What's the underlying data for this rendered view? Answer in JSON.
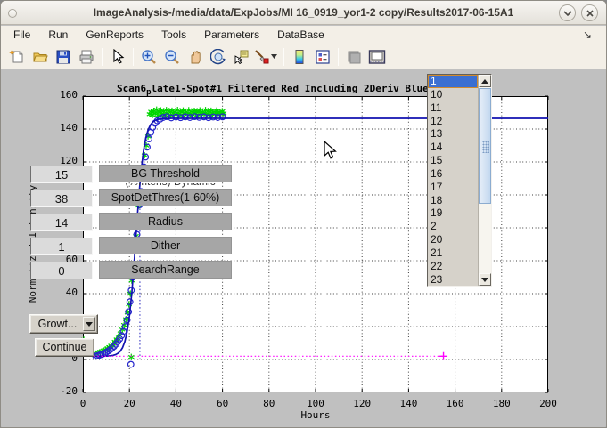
{
  "window": {
    "title": "ImageAnalysis-/media/data/ExpJobs/MI 16_0919_yor1-2 copy/Results2017-06-15A1"
  },
  "menu": {
    "items": [
      {
        "label": "File"
      },
      {
        "label": "Run"
      },
      {
        "label": "GenReports"
      },
      {
        "label": "Tools"
      },
      {
        "label": "Parameters"
      },
      {
        "label": "DataBase"
      }
    ],
    "overflow_arrow": "↘"
  },
  "toolbar": {
    "icons": [
      "new-figure",
      "open-file",
      "save-figure",
      "print-figure",
      "edit-plot-arrow",
      "zoom-in",
      "zoom-out",
      "pan-hand",
      "rotate-3d",
      "data-cursor",
      "brush-data",
      "insert-colorbar",
      "insert-legend",
      "hide-plot-tools",
      "dock-figure"
    ]
  },
  "controls": {
    "fields": [
      {
        "value": "15",
        "label": "BG Threshold"
      },
      {
        "value": "38",
        "label": "SpotDetThres(1-60%)"
      },
      {
        "value": "14",
        "label": "Radius"
      },
      {
        "value": "1",
        "label": "Dither"
      },
      {
        "value": "0",
        "label": "SearchRange"
      }
    ],
    "clipped_label": "(%Intens) Dynamic",
    "growth_dropdown_label": "Growt...",
    "continue_label": "Continue"
  },
  "listbox": {
    "items": [
      "1",
      "10",
      "11",
      "12",
      "13",
      "14",
      "15",
      "16",
      "17",
      "18",
      "19",
      "2",
      "20",
      "21",
      "22",
      "23"
    ],
    "selected": "1"
  },
  "chart_data": {
    "type": "scatter",
    "title_prefix": "Scan6",
    "title_sub": "p",
    "title_rest": "late1-Spot#1 Filtered Red Including 2Deriv Blue",
    "xlabel": "Hours",
    "ylabel": "Normalized Intensity",
    "xlim": [
      0,
      200
    ],
    "ylim": [
      -20,
      160
    ],
    "xticks": [
      0,
      20,
      40,
      60,
      80,
      100,
      120,
      140,
      160,
      180,
      200
    ],
    "yticks": [
      -20,
      0,
      20,
      40,
      60,
      80,
      100,
      120,
      140,
      160
    ],
    "grid": "dotted",
    "colors": {
      "green": "#00d400",
      "blue": "#2525cd",
      "fit": "#1212b0",
      "magenta": "#ff00ff",
      "vline": "#2222bb"
    },
    "series": [
      {
        "name": "raw-intensity-green",
        "marker": "asterisk",
        "color": "#00d400",
        "points": [
          [
            5.7,
            3.5
          ],
          [
            6.5,
            4
          ],
          [
            7.3,
            4.4
          ],
          [
            8.1,
            4.9
          ],
          [
            8.9,
            5.4
          ],
          [
            9.7,
            6
          ],
          [
            10.5,
            6.7
          ],
          [
            11.3,
            7.5
          ],
          [
            12.1,
            8.4
          ],
          [
            12.9,
            9.5
          ],
          [
            13.7,
            10.8
          ],
          [
            14.5,
            12.2
          ],
          [
            15.3,
            13.9
          ],
          [
            16.1,
            15.9
          ],
          [
            16.9,
            18.2
          ],
          [
            17.7,
            21
          ],
          [
            18.5,
            24.5
          ],
          [
            19.2,
            28.5
          ],
          [
            19.8,
            33.5
          ],
          [
            20.4,
            40
          ],
          [
            21,
            48
          ],
          [
            21.6,
            56.5
          ],
          [
            22.2,
            65.5
          ],
          [
            22.8,
            75
          ],
          [
            23.4,
            84.5
          ],
          [
            24,
            93.5
          ],
          [
            24.6,
            102
          ],
          [
            25.2,
            110
          ],
          [
            25.8,
            117
          ],
          [
            26.5,
            124
          ],
          [
            27.2,
            130
          ],
          [
            28,
            135.5
          ],
          [
            28.7,
            149
          ],
          [
            29.3,
            150.5
          ],
          [
            29.9,
            148.5
          ],
          [
            30.5,
            151
          ],
          [
            31.1,
            149.5
          ],
          [
            31.7,
            151.8
          ],
          [
            32.3,
            148.2
          ],
          [
            32.9,
            150.2
          ],
          [
            33.5,
            151.3
          ],
          [
            34.1,
            149
          ],
          [
            34.7,
            150.8
          ],
          [
            35.3,
            148.6
          ],
          [
            35.9,
            151.5
          ],
          [
            36.5,
            149.3
          ],
          [
            37.1,
            150.9
          ],
          [
            37.7,
            148.4
          ],
          [
            38.3,
            151.1
          ],
          [
            38.9,
            149.7
          ],
          [
            39.5,
            150.4
          ],
          [
            40.1,
            148.8
          ],
          [
            40.7,
            151.6
          ],
          [
            41.3,
            149.2
          ],
          [
            41.9,
            150.7
          ],
          [
            42.5,
            148.5
          ],
          [
            43.1,
            151.2
          ],
          [
            43.7,
            149.6
          ],
          [
            44.3,
            150.3
          ],
          [
            44.9,
            148.9
          ],
          [
            45.5,
            151.4
          ],
          [
            46.1,
            149.1
          ],
          [
            46.7,
            150.6
          ],
          [
            47.3,
            148.7
          ],
          [
            47.9,
            151
          ],
          [
            48.5,
            149.4
          ],
          [
            49.1,
            150.8
          ],
          [
            49.7,
            148.6
          ],
          [
            50.3,
            151.3
          ],
          [
            50.9,
            149.8
          ],
          [
            51.5,
            150.2
          ],
          [
            52.1,
            149
          ],
          [
            52.7,
            151.5
          ],
          [
            53.3,
            149.3
          ],
          [
            53.9,
            150.9
          ],
          [
            54.5,
            148.8
          ],
          [
            55.1,
            151.1
          ],
          [
            55.7,
            149.5
          ],
          [
            56.3,
            150.5
          ],
          [
            56.9,
            149
          ],
          [
            57.5,
            151.2
          ],
          [
            58.1,
            149.7
          ],
          [
            58.7,
            150.3
          ],
          [
            59.3,
            149.2
          ],
          [
            59.9,
            150.8
          ],
          [
            60.5,
            149.6
          ],
          [
            20.8,
            1.5
          ],
          [
            0.4,
            12
          ]
        ]
      },
      {
        "name": "spot-detect-blue",
        "marker": "circle",
        "color": "#2525cd",
        "points": [
          [
            5.5,
            2
          ],
          [
            6.3,
            2.3
          ],
          [
            7,
            2.6
          ],
          [
            7.8,
            3
          ],
          [
            8.6,
            3.4
          ],
          [
            9.4,
            3.9
          ],
          [
            10.2,
            4.5
          ],
          [
            11,
            5.2
          ],
          [
            11.8,
            6
          ],
          [
            12.6,
            7
          ],
          [
            13.4,
            8
          ],
          [
            14.2,
            9.3
          ],
          [
            15,
            10.8
          ],
          [
            15.8,
            12.5
          ],
          [
            16.6,
            14.5
          ],
          [
            17.4,
            17
          ],
          [
            18.2,
            20
          ],
          [
            19,
            24
          ],
          [
            19.6,
            29
          ],
          [
            20.2,
            35
          ],
          [
            20.8,
            42
          ],
          [
            21.4,
            50
          ],
          [
            22,
            58
          ],
          [
            22.6,
            67
          ],
          [
            23.2,
            76
          ],
          [
            23.8,
            85
          ],
          [
            24.4,
            94
          ],
          [
            25,
            102
          ],
          [
            25.6,
            110
          ],
          [
            26.2,
            117
          ],
          [
            26.9,
            123
          ],
          [
            27.6,
            129
          ],
          [
            28.4,
            134
          ],
          [
            29.2,
            138
          ],
          [
            30,
            141
          ],
          [
            31,
            143.5
          ],
          [
            32,
            145
          ],
          [
            33.2,
            146
          ],
          [
            34.5,
            147
          ],
          [
            36,
            147.5
          ],
          [
            38,
            146.8
          ],
          [
            40,
            147.3
          ],
          [
            42,
            146.9
          ],
          [
            44,
            147.4
          ],
          [
            46,
            147
          ],
          [
            48,
            147.5
          ],
          [
            50,
            147.1
          ],
          [
            52,
            147.4
          ],
          [
            54,
            146.9
          ],
          [
            56,
            147.3
          ],
          [
            58,
            147
          ],
          [
            60,
            147.4
          ],
          [
            20.6,
            -3
          ]
        ]
      },
      {
        "name": "fit-line",
        "type": "logistic-line",
        "color": "#1212b0",
        "baseline": 2,
        "plateau": 146.5,
        "x0": 22.8,
        "k": 1.75,
        "x_range": [
          4,
          200
        ]
      },
      {
        "name": "baseline-line",
        "type": "hline",
        "color": "#ff00ff",
        "style": "dotted",
        "y": 2,
        "x_range": [
          0,
          155
        ],
        "end_marker": "plus"
      },
      {
        "name": "threshold-vline",
        "type": "vline",
        "color": "#2222bb",
        "style": "dotted",
        "x": 24.5,
        "y_range": [
          0,
          118
        ]
      }
    ]
  }
}
